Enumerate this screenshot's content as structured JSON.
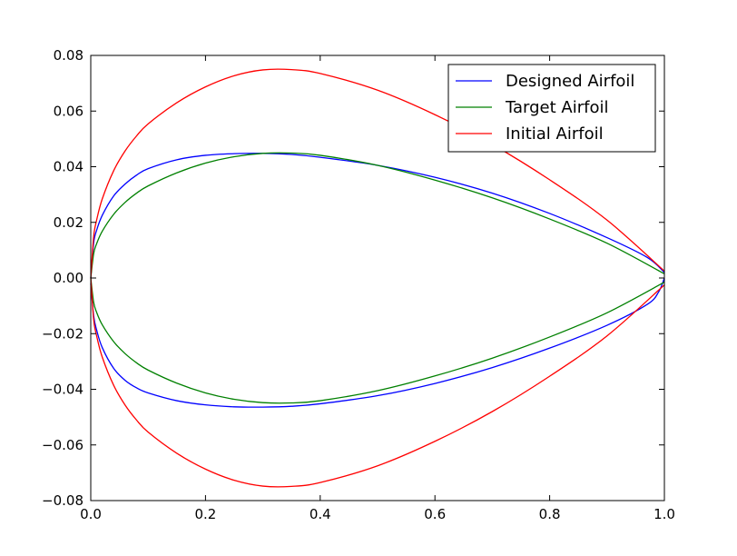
{
  "chart_data": {
    "type": "line",
    "title": "",
    "xlabel": "",
    "ylabel": "",
    "xlim": [
      0.0,
      1.0
    ],
    "ylim": [
      -0.08,
      0.08
    ],
    "x_ticks": [
      "0.0",
      "0.2",
      "0.4",
      "0.6",
      "0.8",
      "1.0"
    ],
    "y_ticks": [
      "0.08",
      "0.06",
      "0.04",
      "0.02",
      "0.00",
      "−0.02",
      "−0.04",
      "−0.06",
      "−0.08"
    ],
    "legend_position": "top-right",
    "grid": false,
    "series": [
      {
        "name": "Designed Airfoil",
        "color": "#0000ff",
        "upper": {
          "x": [
            0.0,
            0.005,
            0.01,
            0.02,
            0.04,
            0.06,
            0.08,
            0.1,
            0.15,
            0.2,
            0.25,
            0.3,
            0.35,
            0.4,
            0.5,
            0.6,
            0.7,
            0.8,
            0.9,
            0.97,
            1.0
          ],
          "y": [
            0.0,
            0.0125,
            0.017,
            0.0225,
            0.0295,
            0.0338,
            0.037,
            0.0393,
            0.0425,
            0.0441,
            0.0447,
            0.0448,
            0.0444,
            0.0434,
            0.0405,
            0.0362,
            0.0305,
            0.0232,
            0.0145,
            0.0074,
            0.002
          ]
        },
        "lower": {
          "x": [
            0.0,
            0.005,
            0.01,
            0.02,
            0.04,
            0.06,
            0.08,
            0.1,
            0.15,
            0.2,
            0.25,
            0.3,
            0.35,
            0.4,
            0.5,
            0.6,
            0.7,
            0.8,
            0.9,
            0.97,
            0.99,
            1.0
          ],
          "y": [
            -0.002,
            -0.0135,
            -0.0185,
            -0.025,
            -0.0325,
            -0.0368,
            -0.0395,
            -0.0413,
            -0.0441,
            -0.0456,
            -0.0463,
            -0.0464,
            -0.0461,
            -0.0452,
            -0.0423,
            -0.0379,
            -0.0322,
            -0.0252,
            -0.017,
            -0.0095,
            -0.005,
            0.0
          ]
        }
      },
      {
        "name": "Target Airfoil",
        "color": "#008000",
        "upper": {
          "x": [
            0.0,
            0.005,
            0.01,
            0.02,
            0.04,
            0.06,
            0.08,
            0.1,
            0.15,
            0.2,
            0.25,
            0.3,
            0.35,
            0.4,
            0.5,
            0.6,
            0.7,
            0.8,
            0.9,
            1.0
          ],
          "y": [
            0.0,
            0.0087,
            0.0122,
            0.0168,
            0.0229,
            0.0272,
            0.0305,
            0.0331,
            0.0378,
            0.0413,
            0.0436,
            0.0448,
            0.0449,
            0.0441,
            0.0405,
            0.0352,
            0.0288,
            0.0212,
            0.0125,
            0.0015
          ]
        },
        "lower": {
          "x": [
            0.0,
            0.005,
            0.01,
            0.02,
            0.04,
            0.06,
            0.08,
            0.1,
            0.15,
            0.2,
            0.25,
            0.3,
            0.35,
            0.4,
            0.5,
            0.6,
            0.7,
            0.8,
            0.9,
            1.0
          ],
          "y": [
            0.0,
            -0.0087,
            -0.0122,
            -0.0168,
            -0.0229,
            -0.0272,
            -0.0305,
            -0.0331,
            -0.0378,
            -0.0413,
            -0.0436,
            -0.0448,
            -0.0449,
            -0.0441,
            -0.0405,
            -0.0352,
            -0.0288,
            -0.0212,
            -0.0125,
            -0.0015
          ]
        }
      },
      {
        "name": "Initial Airfoil",
        "color": "#ff0000",
        "upper": {
          "x": [
            0.0,
            0.005,
            0.01,
            0.02,
            0.04,
            0.06,
            0.08,
            0.1,
            0.15,
            0.2,
            0.25,
            0.3,
            0.35,
            0.4,
            0.5,
            0.6,
            0.7,
            0.8,
            0.9,
            1.0
          ],
          "y": [
            0.0,
            0.0148,
            0.0206,
            0.0284,
            0.0386,
            0.0457,
            0.0511,
            0.0554,
            0.063,
            0.0687,
            0.0727,
            0.0748,
            0.0749,
            0.0735,
            0.0675,
            0.0587,
            0.048,
            0.0353,
            0.0208,
            0.0025
          ]
        },
        "lower": {
          "x": [
            0.0,
            0.005,
            0.01,
            0.02,
            0.04,
            0.06,
            0.08,
            0.1,
            0.15,
            0.2,
            0.25,
            0.3,
            0.35,
            0.4,
            0.5,
            0.6,
            0.7,
            0.8,
            0.9,
            1.0
          ],
          "y": [
            0.0,
            -0.0148,
            -0.0206,
            -0.0284,
            -0.0386,
            -0.0457,
            -0.0511,
            -0.0554,
            -0.063,
            -0.0687,
            -0.0727,
            -0.0748,
            -0.0749,
            -0.0735,
            -0.0675,
            -0.0587,
            -0.048,
            -0.0353,
            -0.0208,
            -0.0025
          ]
        }
      }
    ]
  }
}
